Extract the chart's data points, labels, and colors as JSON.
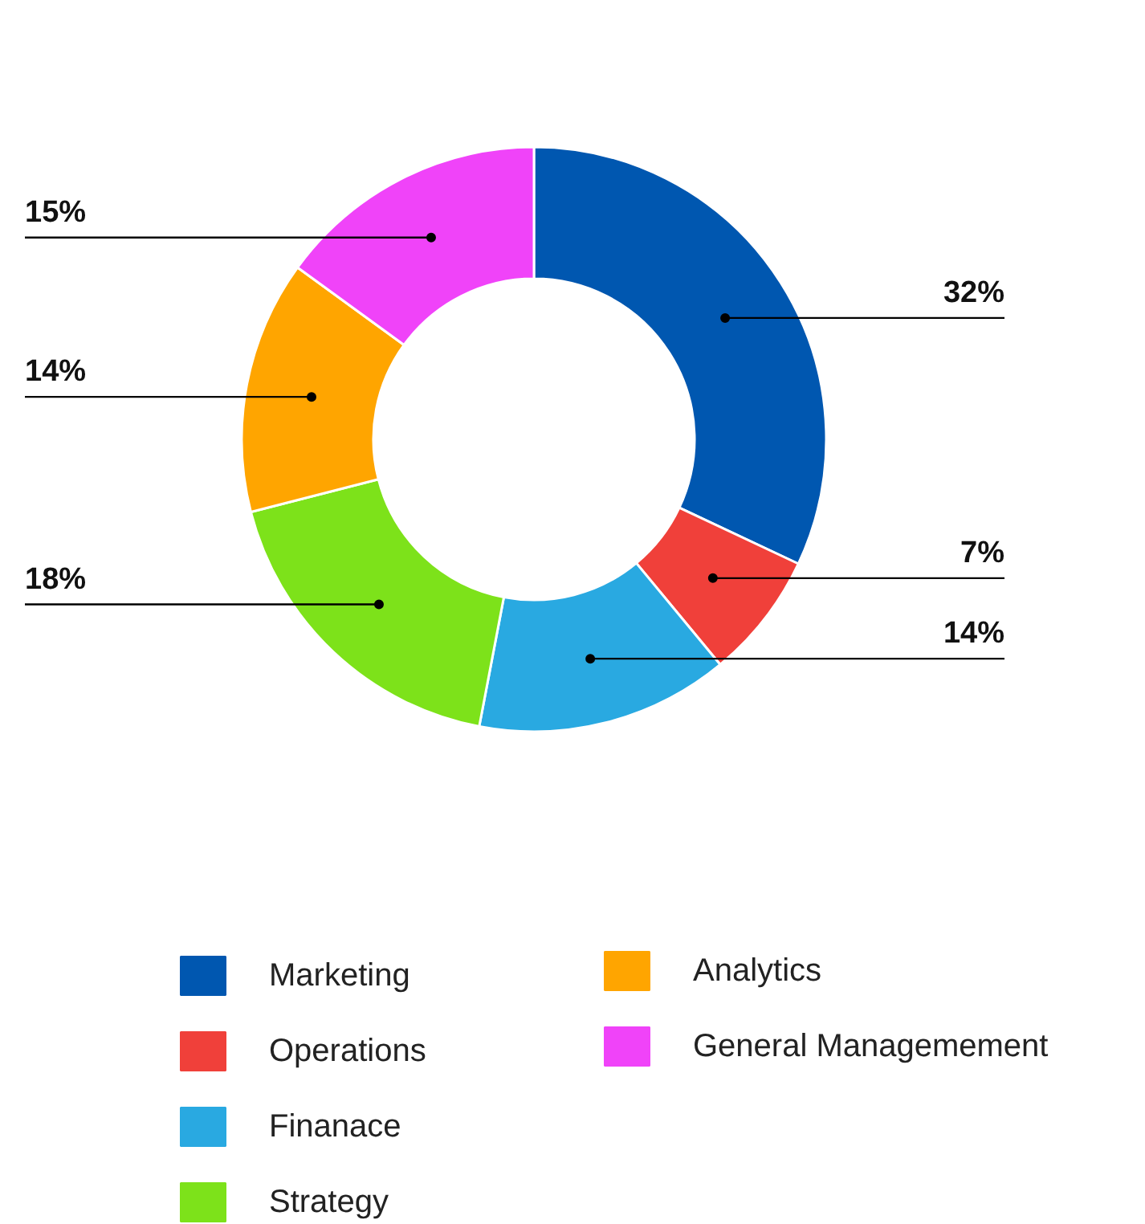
{
  "chart_data": {
    "type": "donut",
    "categories": [
      "Marketing",
      "Operations",
      "Finanace",
      "Strategy",
      "Analytics",
      "General Managemement"
    ],
    "values": [
      32,
      7,
      14,
      18,
      14,
      15
    ],
    "colors": [
      "#0057b0",
      "#f0403a",
      "#29a9e1",
      "#7de21a",
      "#ffa500",
      "#f043f9"
    ],
    "value_labels": [
      "32%",
      "7%",
      "14%",
      "18%",
      "14%",
      "15%"
    ],
    "legend": "bottom"
  }
}
